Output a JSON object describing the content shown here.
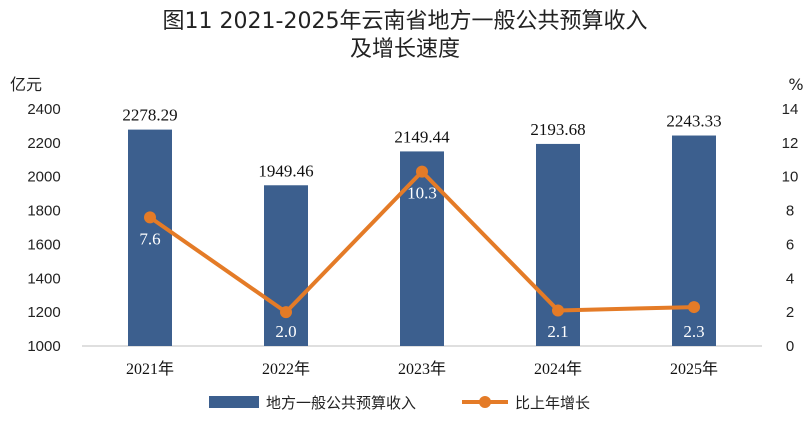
{
  "chart_data": {
    "type": "bar+line",
    "title_line1": "图11  2021-2025年云南省地方一般公共预算收入",
    "title_line2": "及增长速度",
    "left_unit": "亿元",
    "right_unit": "%",
    "categories": [
      "2021年",
      "2022年",
      "2023年",
      "2024年",
      "2025年"
    ],
    "left_ylim": [
      1000,
      2400
    ],
    "left_ticks": [
      "1000",
      "1200",
      "1400",
      "1600",
      "1800",
      "2000",
      "2200",
      "2400"
    ],
    "right_ylim": [
      0,
      14
    ],
    "right_ticks": [
      "0",
      "2",
      "4",
      "6",
      "8",
      "10",
      "12",
      "14"
    ],
    "series": [
      {
        "name": "地方一般公共预算收入",
        "type": "bar",
        "axis": "left",
        "color": "#3c5f8e",
        "values": [
          2278.29,
          1949.46,
          2149.44,
          2193.68,
          2243.33
        ],
        "labels": [
          "2278.29",
          "1949.46",
          "2149.44",
          "2193.68",
          "2243.33"
        ]
      },
      {
        "name": "比上年增长",
        "type": "line",
        "axis": "right",
        "color": "#e47b27",
        "values": [
          7.6,
          2.0,
          10.3,
          2.1,
          2.3
        ],
        "labels": [
          "7.6",
          "2.0",
          "10.3",
          "2.1",
          "2.3"
        ]
      }
    ],
    "legend": "bottom",
    "grid": false
  }
}
